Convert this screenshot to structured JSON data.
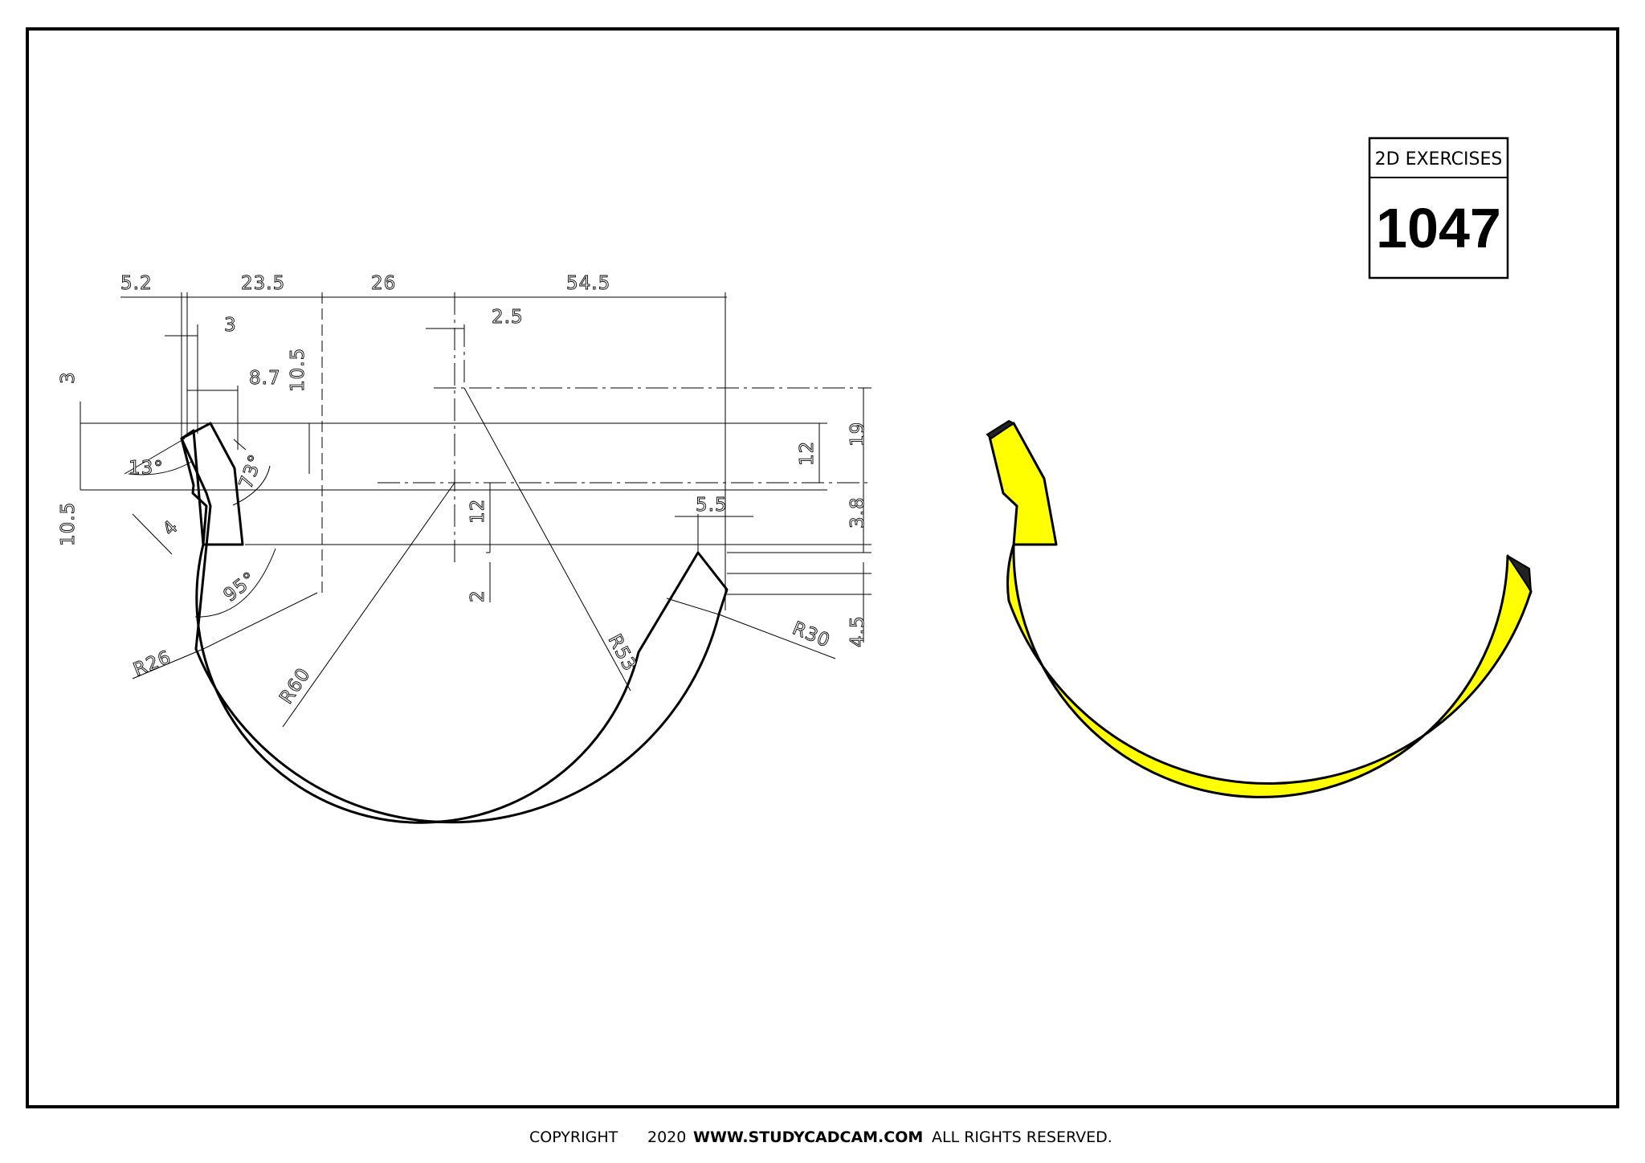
{
  "title_block": {
    "label": "2D EXERCISES",
    "number": "1047"
  },
  "footer": {
    "copyright": "COPYRIGHT",
    "year": "2020",
    "site": "WWW.STUDYCADCAM.COM",
    "rights": "ALL RIGHTS RESERVED."
  },
  "dimensions": {
    "d_5_2": "5.2",
    "d_23_5": "23.5",
    "d_26": "26",
    "d_54_5": "54.5",
    "d_3_horiz": "3",
    "d_2_5": "2.5",
    "d_8_7": "8.7",
    "d_10_5_vert": "10.5",
    "d_3_left": "3",
    "d_10_5_left": "10.5",
    "a_13": "13°",
    "a_73": "73°",
    "d_4": "4",
    "a_95": "95°",
    "d_12_center": "12",
    "d_2": "2",
    "d_12_right": "12",
    "d_19": "19",
    "d_3_8": "3.8",
    "d_5_5": "5.5",
    "d_4_5": "4.5",
    "r_26": "R26",
    "r_60": "R60",
    "r_53": "R53",
    "r_30": "R30"
  },
  "colors": {
    "banana_fill": "#ffff00",
    "stem_tip": "#222222",
    "line": "#000000"
  }
}
